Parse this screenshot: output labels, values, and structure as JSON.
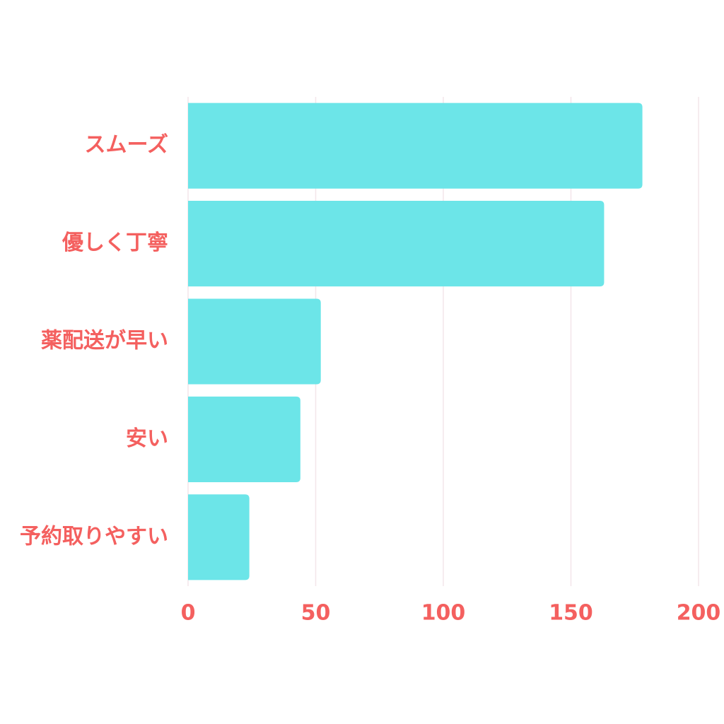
{
  "chart_data": {
    "type": "bar",
    "orientation": "horizontal",
    "categories": [
      "スムーズ",
      "優しく丁寧",
      "薬配送が早い",
      "安い",
      "予約取りやすい"
    ],
    "values": [
      178,
      163,
      52,
      44,
      24
    ],
    "color": "#6ce5e8",
    "xlim": [
      0,
      200
    ],
    "xticks": [
      0,
      50,
      100,
      150,
      200
    ],
    "grid": true
  }
}
